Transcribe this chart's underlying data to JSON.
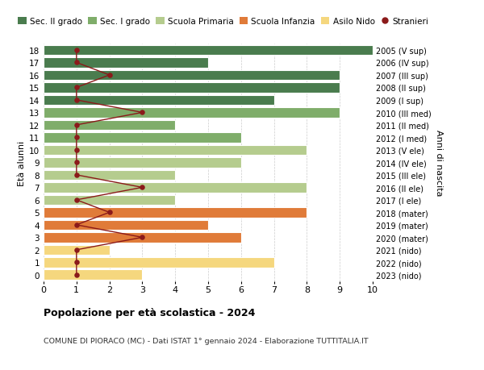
{
  "ages": [
    18,
    17,
    16,
    15,
    14,
    13,
    12,
    11,
    10,
    9,
    8,
    7,
    6,
    5,
    4,
    3,
    2,
    1,
    0
  ],
  "labels_right": [
    "2005 (V sup)",
    "2006 (IV sup)",
    "2007 (III sup)",
    "2008 (II sup)",
    "2009 (I sup)",
    "2010 (III med)",
    "2011 (II med)",
    "2012 (I med)",
    "2013 (V ele)",
    "2014 (IV ele)",
    "2015 (III ele)",
    "2016 (II ele)",
    "2017 (I ele)",
    "2018 (mater)",
    "2019 (mater)",
    "2020 (mater)",
    "2021 (nido)",
    "2022 (nido)",
    "2023 (nido)"
  ],
  "bar_values": [
    10,
    5,
    9,
    9,
    7,
    9,
    4,
    6,
    8,
    6,
    4,
    8,
    4,
    8,
    5,
    6,
    2,
    7,
    3
  ],
  "bar_colors": [
    "#4a7c4e",
    "#4a7c4e",
    "#4a7c4e",
    "#4a7c4e",
    "#4a7c4e",
    "#7fad6a",
    "#7fad6a",
    "#7fad6a",
    "#b5cc8e",
    "#b5cc8e",
    "#b5cc8e",
    "#b5cc8e",
    "#b5cc8e",
    "#e07b39",
    "#e07b39",
    "#e07b39",
    "#f5d77e",
    "#f5d77e",
    "#f5d77e"
  ],
  "stranieri_values": [
    1,
    1,
    2,
    1,
    1,
    3,
    1,
    1,
    1,
    1,
    1,
    3,
    1,
    2,
    1,
    3,
    1,
    1,
    1
  ],
  "legend_labels": [
    "Sec. II grado",
    "Sec. I grado",
    "Scuola Primaria",
    "Scuola Infanzia",
    "Asilo Nido",
    "Stranieri"
  ],
  "legend_colors": [
    "#4a7c4e",
    "#7fad6a",
    "#b5cc8e",
    "#e07b39",
    "#f5d77e",
    "#8b1a1a"
  ],
  "title_bold": "Popolazione per età scolastica - 2024",
  "subtitle": "COMUNE DI PIORACO (MC) - Dati ISTAT 1° gennaio 2024 - Elaborazione TUTTITALIA.IT",
  "ylabel": "Età alunni",
  "ylabel_right": "Anni di nascita",
  "xlim": [
    0,
    10
  ],
  "xticks": [
    0,
    1,
    2,
    3,
    4,
    5,
    6,
    7,
    8,
    9,
    10
  ],
  "stranieri_color": "#8b1a1a",
  "bg_color": "#ffffff"
}
